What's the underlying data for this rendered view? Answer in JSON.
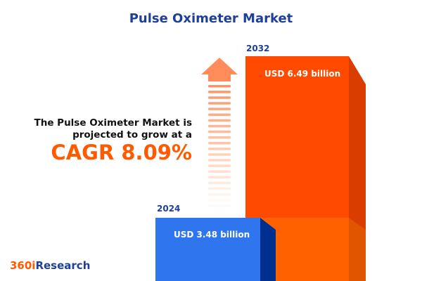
{
  "title": "Pulse Oximeter Market",
  "description": {
    "line1": "The Pulse Oximeter Market is",
    "line2": "projected to grow at a",
    "cagr": "CAGR 8.09%"
  },
  "bars": [
    {
      "year": "2024",
      "label": "USD 3.48 billion",
      "value": 3.48,
      "color": "#2f76ee"
    },
    {
      "year": "2032",
      "label": "USD 6.49 billion",
      "value": 6.49,
      "color": "#ff4a00"
    }
  ],
  "logo": {
    "part1": "360i",
    "part2": "Research",
    "color1": "#ff5a00",
    "color2": "#1e3f9a"
  }
}
